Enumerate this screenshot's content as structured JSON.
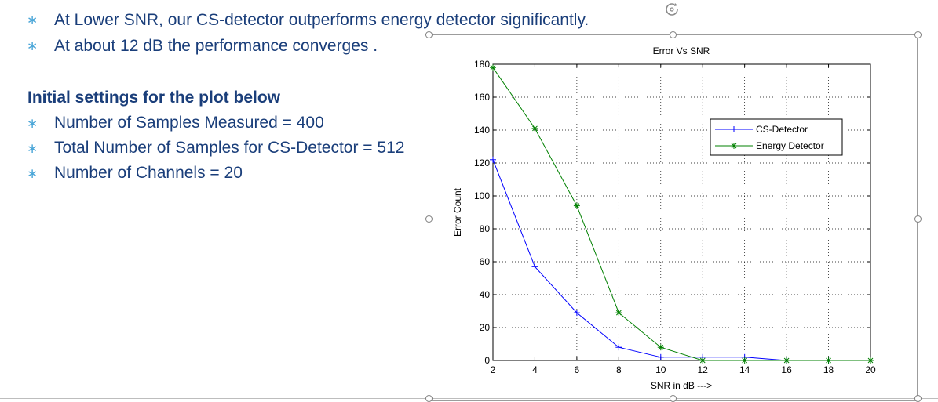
{
  "bullets_top": [
    {
      "marker": "∗",
      "text": "At Lower SNR, our CS-detector outperforms energy detector significantly."
    },
    {
      "marker": "∗",
      "text": "At about 12 dB the performance converges ."
    }
  ],
  "section_heading": "Initial settings for the plot below",
  "settings": [
    {
      "marker": "∗",
      "text": "Number of Samples Measured = 400"
    },
    {
      "marker": "∗",
      "text": "Total Number of Samples for CS-Detector = 512"
    },
    {
      "marker": "∗",
      "text": "Number of Channels = 20"
    }
  ],
  "icons": {
    "rotate": "rotate-handle-icon"
  },
  "colors": {
    "text": "#1a3e7a",
    "bullet": "#4aa6d8",
    "cs_series": "#0000ff",
    "energy_series": "#008000"
  },
  "chart_data": {
    "type": "line",
    "title": "Error Vs SNR",
    "xlabel": "SNR in dB --->",
    "ylabel": "Error Count",
    "xlim": [
      2,
      20
    ],
    "ylim": [
      0,
      180
    ],
    "xticks": [
      2,
      4,
      6,
      8,
      10,
      12,
      14,
      16,
      18,
      20
    ],
    "yticks": [
      0,
      20,
      40,
      60,
      80,
      100,
      120,
      140,
      160,
      180
    ],
    "grid": true,
    "legend_position": "upper-right",
    "series": [
      {
        "name": "CS-Detector",
        "color": "#0000ff",
        "marker": "+",
        "x": [
          2,
          4,
          6,
          8,
          10,
          12,
          14,
          16,
          18,
          20
        ],
        "y": [
          122,
          57,
          29,
          8,
          2,
          2,
          2,
          0,
          0,
          0
        ]
      },
      {
        "name": "Energy Detector",
        "color": "#008000",
        "marker": "*",
        "x": [
          2,
          4,
          6,
          8,
          10,
          12,
          14,
          16,
          18,
          20
        ],
        "y": [
          178,
          141,
          94,
          29,
          8,
          0,
          0,
          0,
          0,
          0
        ]
      }
    ]
  }
}
